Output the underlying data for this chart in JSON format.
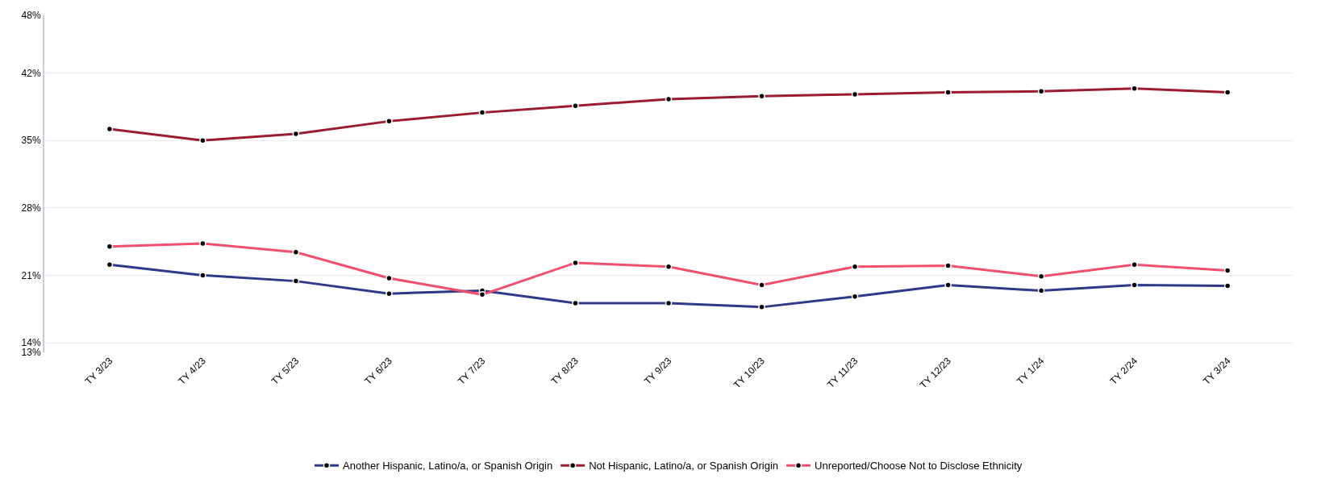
{
  "chart_data": {
    "type": "line",
    "categories": [
      "TY 3/23",
      "TY 4/23",
      "TY 5/23",
      "TY 6/23",
      "TY 7/23",
      "TY 8/23",
      "TY 9/23",
      "TY 10/23",
      "TY 11/23",
      "TY 12/23",
      "TY 1/24",
      "TY 2/24",
      "TY 3/24"
    ],
    "series": [
      {
        "name": "Another Hispanic, Latino/a, or Spanish Origin",
        "color": "#2e3a87",
        "values": [
          22.1,
          21.0,
          20.4,
          19.1,
          19.4,
          18.1,
          18.1,
          17.7,
          18.8,
          20.0,
          19.4,
          20.0,
          19.9
        ]
      },
      {
        "name": "Not Hispanic, Latino/a, or Spanish Origin",
        "color": "#9b1b30",
        "values": [
          36.2,
          35.0,
          35.7,
          37.0,
          37.9,
          38.6,
          39.3,
          39.6,
          39.8,
          40.0,
          40.1,
          40.4,
          40.0
        ]
      },
      {
        "name": "Unreported/Choose Not to Disclose Ethnicity",
        "color": "#f0506e",
        "values": [
          24.0,
          24.3,
          23.4,
          20.7,
          19.0,
          22.3,
          21.9,
          20.0,
          21.9,
          22.0,
          20.9,
          22.1,
          21.5
        ]
      }
    ],
    "ylim": [
      13,
      48
    ],
    "yticks": [
      {
        "value": 13,
        "label": "13%"
      },
      {
        "value": 14,
        "label": "14%"
      },
      {
        "value": 21,
        "label": "21%"
      },
      {
        "value": 28,
        "label": "28%"
      },
      {
        "value": 35,
        "label": "35%"
      },
      {
        "value": 42,
        "label": "42%"
      },
      {
        "value": 48,
        "label": "48%"
      }
    ],
    "grid": "y",
    "legend": "bottom",
    "marker": "circle",
    "line_style": "solid"
  }
}
